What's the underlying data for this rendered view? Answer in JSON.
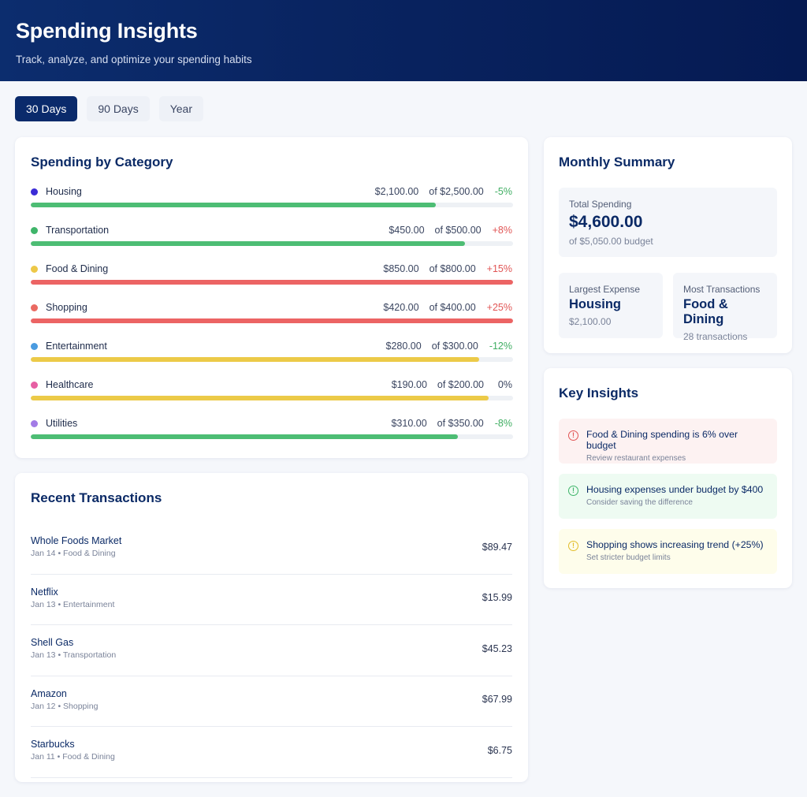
{
  "header": {
    "title": "Spending Insights",
    "subtitle": "Track, analyze, and optimize your spending habits"
  },
  "tabs": [
    {
      "label": "30 Days",
      "active": true
    },
    {
      "label": "90 Days",
      "active": false
    },
    {
      "label": "Year",
      "active": false
    }
  ],
  "categories": {
    "title": "Spending by Category",
    "items": [
      {
        "name": "Housing",
        "amount": "$2,100.00",
        "budget": "of $2,500.00",
        "change": "-5%",
        "dot": "#3b2bd6",
        "fill": 0.84,
        "bar": "#4dbd74",
        "changeColor": "#3fae62"
      },
      {
        "name": "Transportation",
        "amount": "$450.00",
        "budget": "of $500.00",
        "change": "+8%",
        "dot": "#3fb56a",
        "fill": 0.9,
        "bar": "#4dbd74",
        "changeColor": "#e15656"
      },
      {
        "name": "Food & Dining",
        "amount": "$850.00",
        "budget": "of $800.00",
        "change": "+15%",
        "dot": "#edc848",
        "fill": 1.0,
        "bar": "#ec6464",
        "changeColor": "#e15656"
      },
      {
        "name": "Shopping",
        "amount": "$420.00",
        "budget": "of $400.00",
        "change": "+25%",
        "dot": "#ea6a62",
        "fill": 1.0,
        "bar": "#ec6464",
        "changeColor": "#e15656"
      },
      {
        "name": "Entertainment",
        "amount": "$280.00",
        "budget": "of $300.00",
        "change": "-12%",
        "dot": "#4a9be0",
        "fill": 0.93,
        "bar": "#ecca48",
        "changeColor": "#3fae62"
      },
      {
        "name": "Healthcare",
        "amount": "$190.00",
        "budget": "of $200.00",
        "change": "0%",
        "dot": "#e65fa3",
        "fill": 0.95,
        "bar": "#ecca48",
        "changeColor": "#3a4560"
      },
      {
        "name": "Utilities",
        "amount": "$310.00",
        "budget": "of $350.00",
        "change": "-8%",
        "dot": "#a27be6",
        "fill": 0.886,
        "bar": "#4dbd74",
        "changeColor": "#3fae62"
      }
    ]
  },
  "transactions": {
    "title": "Recent Transactions",
    "items": [
      {
        "name": "Whole Foods Market",
        "meta": "Jan 14 • Food & Dining",
        "amount": "$89.47"
      },
      {
        "name": "Netflix",
        "meta": "Jan 13 • Entertainment",
        "amount": "$15.99"
      },
      {
        "name": "Shell Gas",
        "meta": "Jan 13 • Transportation",
        "amount": "$45.23"
      },
      {
        "name": "Amazon",
        "meta": "Jan 12 • Shopping",
        "amount": "$67.99"
      },
      {
        "name": "Starbucks",
        "meta": "Jan 11 • Food & Dining",
        "amount": "$6.75"
      }
    ]
  },
  "summary": {
    "title": "Monthly Summary",
    "total_label": "Total Spending",
    "total_value": "$4,600.00",
    "total_budget": "of $5,050.00 budget",
    "largest_label": "Largest Expense",
    "largest_value": "Housing",
    "largest_amount": "$2,100.00",
    "most_label": "Most Transactions",
    "most_value": "Food & Dining",
    "most_count": "28 transactions"
  },
  "insights": {
    "title": "Key Insights",
    "items": [
      {
        "type": "red",
        "icon": "alert-circle-icon",
        "title": "Food & Dining spending is 6% over budget",
        "sub": "Review restaurant expenses"
      },
      {
        "type": "green",
        "icon": "info-circle-icon",
        "title": "Housing expenses under budget by $400",
        "sub": "Consider saving the difference"
      },
      {
        "type": "yellow",
        "icon": "warning-circle-icon",
        "title": "Shopping shows increasing trend (+25%)",
        "sub": "Set stricter budget limits"
      }
    ]
  }
}
